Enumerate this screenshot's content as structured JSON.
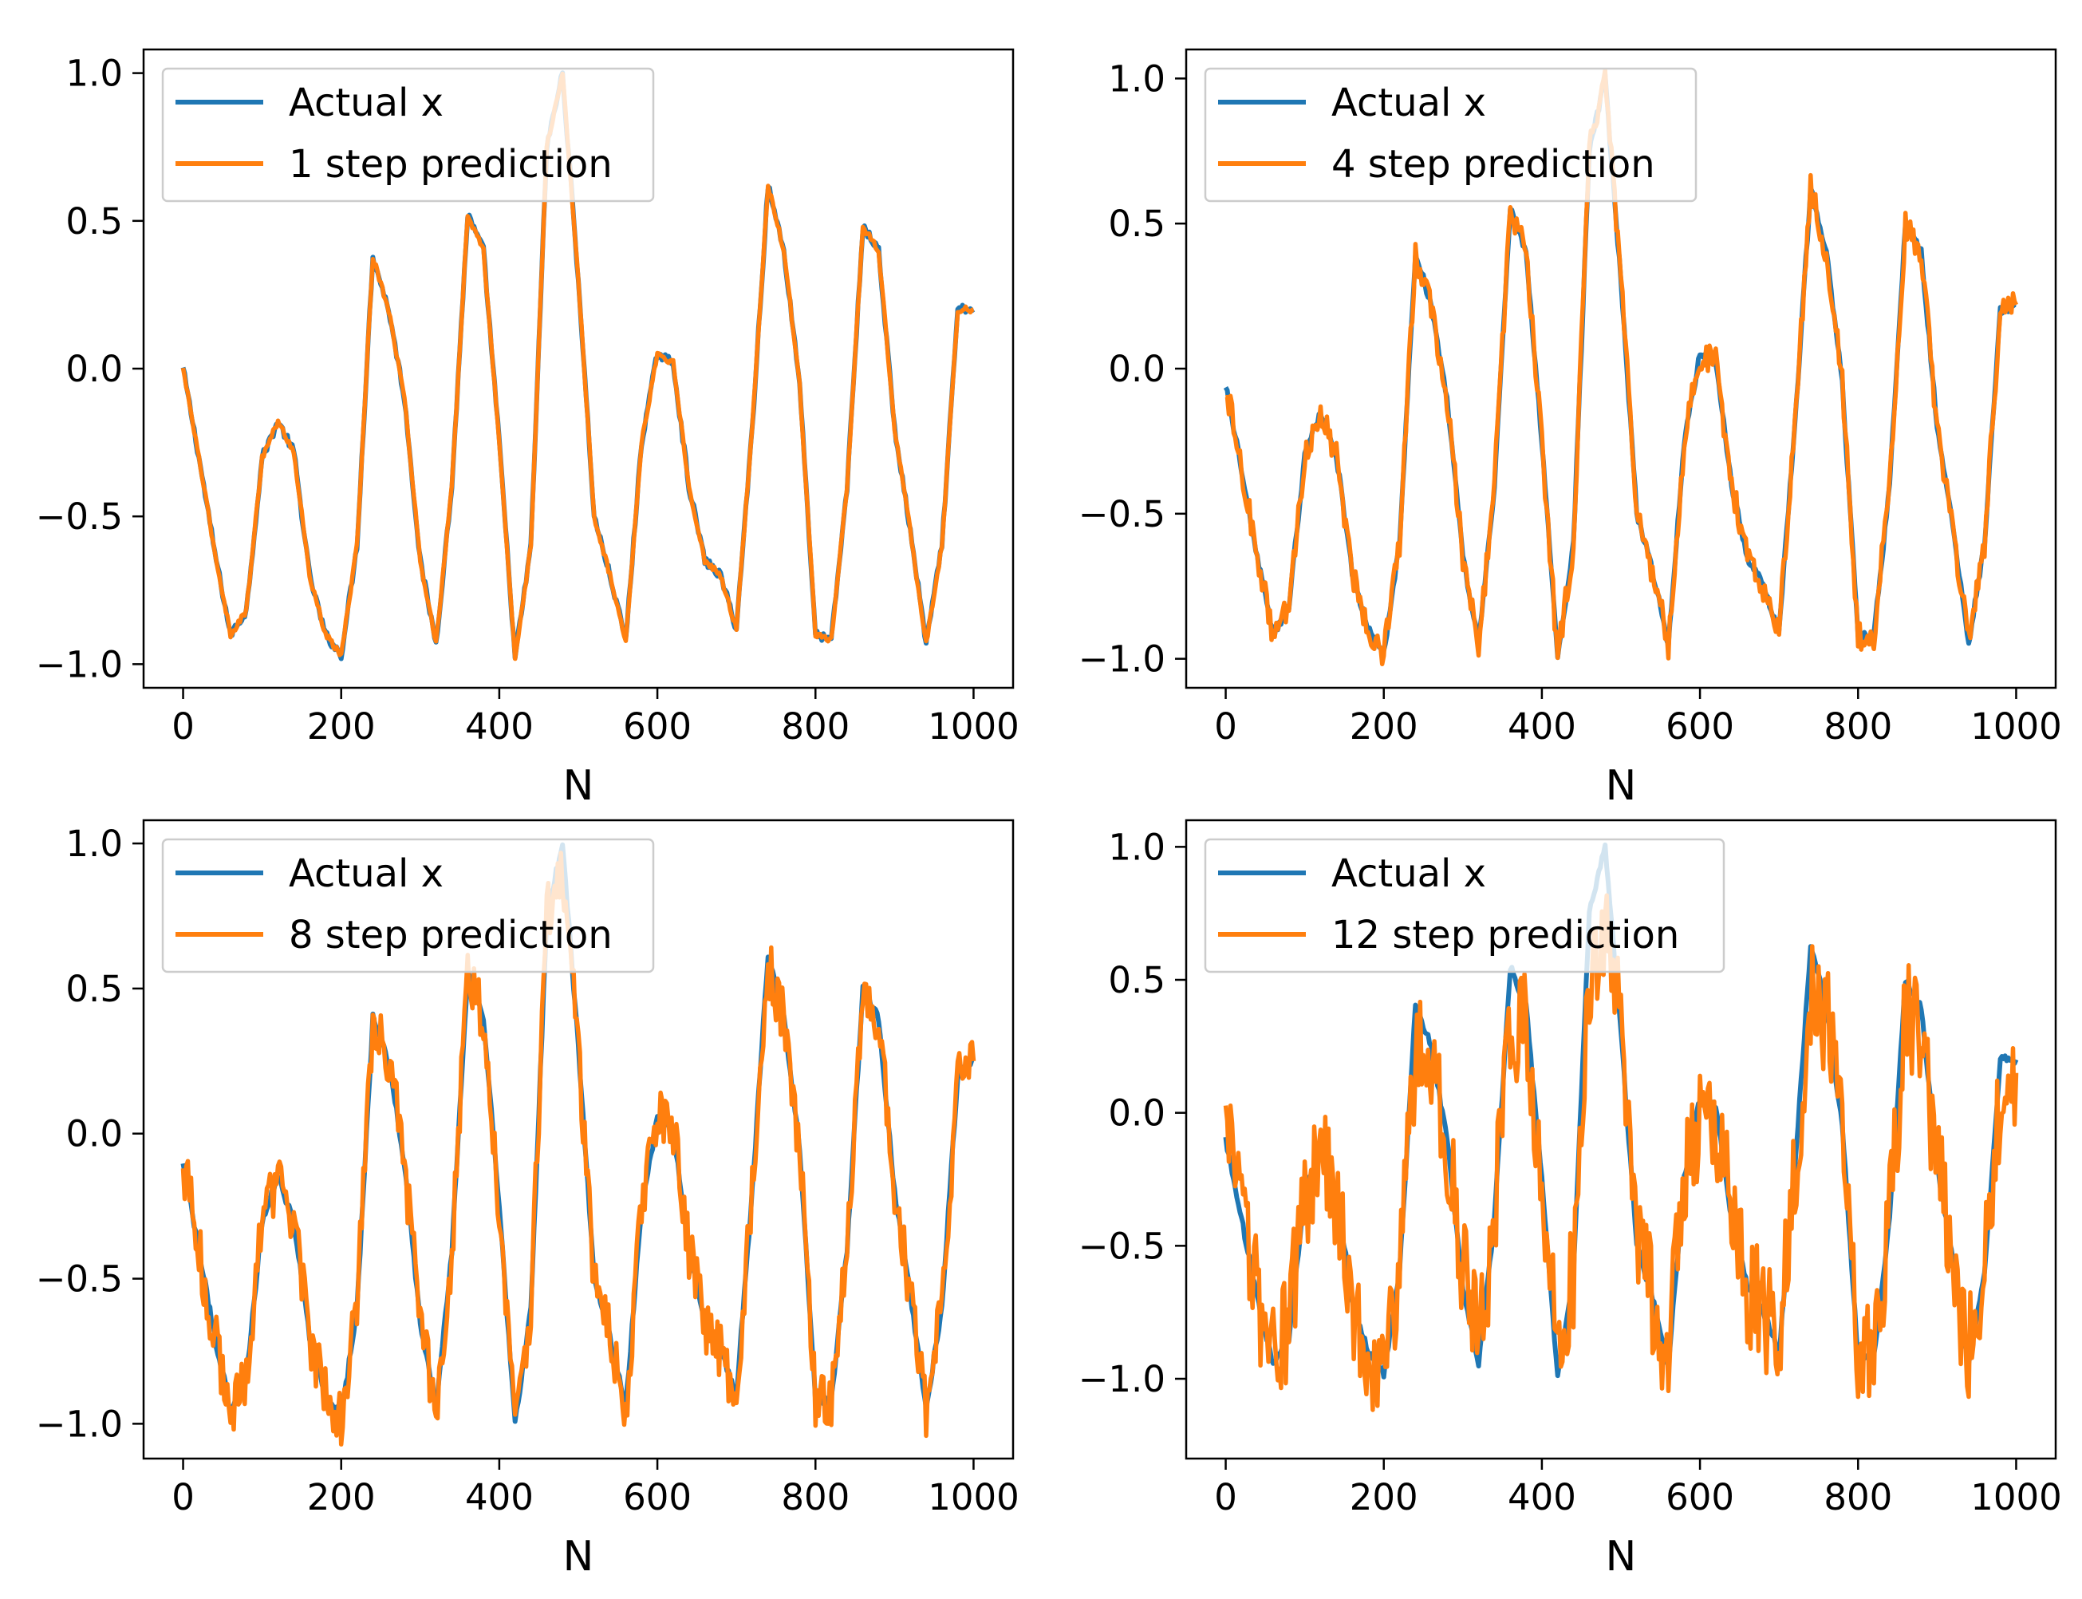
{
  "colors": {
    "actual": "#1f77b4",
    "prediction": "#ff7f0e",
    "axes": "#000000",
    "legend_border": "#cccccc"
  },
  "chart_data": [
    {
      "type": "line",
      "position": "top-left",
      "xlabel": "N",
      "ylabel": "",
      "xlim": [
        -50,
        1050
      ],
      "ylim": [
        -1.08,
        1.08
      ],
      "xticks": [
        0,
        200,
        400,
        600,
        800,
        1000
      ],
      "yticks": [
        -1.0,
        -0.5,
        0.0,
        0.5,
        1.0
      ],
      "xtick_labels": [
        "0",
        "200",
        "400",
        "600",
        "800",
        "1000"
      ],
      "ytick_labels": [
        "−1.0",
        "−0.5",
        "0.0",
        "0.5",
        "1.0"
      ],
      "legend_position": "top-left",
      "x": [
        0,
        20,
        40,
        60,
        80,
        100,
        120,
        140,
        160,
        180,
        200,
        220,
        240,
        260,
        280,
        300,
        320,
        340,
        360,
        380,
        400,
        420,
        440,
        460,
        480,
        500,
        520,
        540,
        560,
        580,
        600,
        620,
        640,
        660,
        680,
        700,
        720,
        740,
        760,
        780,
        800,
        820,
        840,
        860,
        880,
        900,
        920,
        940,
        960,
        980,
        1000
      ],
      "series": [
        {
          "name": "Actual x",
          "values": [
            0.0,
            -0.3,
            -0.62,
            -0.9,
            -0.82,
            -0.3,
            -0.18,
            -0.28,
            -0.7,
            -0.9,
            -0.97,
            -0.6,
            0.38,
            0.2,
            -0.1,
            -0.65,
            -0.93,
            -0.4,
            0.52,
            0.4,
            -0.25,
            -0.98,
            -0.6,
            0.75,
            1.0,
            0.3,
            -0.5,
            -0.7,
            -0.92,
            -0.25,
            0.05,
            0.02,
            -0.4,
            -0.65,
            -0.7,
            -0.88,
            -0.2,
            0.62,
            0.4,
            -0.05,
            -0.9,
            -0.92,
            -0.4,
            0.48,
            0.4,
            -0.2,
            -0.55,
            -0.93,
            -0.6,
            0.2,
            0.2
          ]
        },
        {
          "name": "1 step prediction",
          "noise": 0.01,
          "values": [
            0.0,
            -0.3,
            -0.62,
            -0.9,
            -0.82,
            -0.3,
            -0.18,
            -0.28,
            -0.7,
            -0.9,
            -0.97,
            -0.6,
            0.38,
            0.2,
            -0.1,
            -0.65,
            -0.93,
            -0.4,
            0.52,
            0.4,
            -0.25,
            -0.98,
            -0.6,
            0.75,
            1.0,
            0.3,
            -0.5,
            -0.7,
            -0.92,
            -0.25,
            0.05,
            0.02,
            -0.4,
            -0.65,
            -0.7,
            -0.88,
            -0.2,
            0.62,
            0.4,
            -0.05,
            -0.9,
            -0.92,
            -0.4,
            0.48,
            0.4,
            -0.2,
            -0.55,
            -0.93,
            -0.6,
            0.2,
            0.2
          ]
        }
      ]
    },
    {
      "type": "line",
      "position": "top-right",
      "xlabel": "N",
      "ylabel": "",
      "xlim": [
        -50,
        1050
      ],
      "ylim": [
        -1.1,
        1.1
      ],
      "xticks": [
        0,
        200,
        400,
        600,
        800,
        1000
      ],
      "yticks": [
        -1.0,
        -0.5,
        0.0,
        0.5,
        1.0
      ],
      "xtick_labels": [
        "0",
        "200",
        "400",
        "600",
        "800",
        "1000"
      ],
      "ytick_labels": [
        "−1.0",
        "−0.5",
        "0.0",
        "0.5",
        "1.0"
      ],
      "legend_position": "top-left",
      "x": [
        0,
        20,
        40,
        60,
        80,
        100,
        120,
        140,
        160,
        180,
        200,
        220,
        240,
        260,
        280,
        300,
        320,
        340,
        360,
        380,
        400,
        420,
        440,
        460,
        480,
        500,
        520,
        540,
        560,
        580,
        600,
        620,
        640,
        660,
        680,
        700,
        720,
        740,
        760,
        780,
        800,
        820,
        840,
        860,
        880,
        900,
        920,
        940,
        960,
        980,
        1000
      ],
      "series": [
        {
          "name": "Actual x",
          "values": [
            -0.05,
            -0.35,
            -0.65,
            -0.92,
            -0.82,
            -0.3,
            -0.15,
            -0.3,
            -0.7,
            -0.9,
            -0.98,
            -0.6,
            0.4,
            0.22,
            -0.1,
            -0.65,
            -0.95,
            -0.4,
            0.55,
            0.4,
            -0.25,
            -1.0,
            -0.6,
            0.75,
            1.0,
            0.3,
            -0.5,
            -0.7,
            -0.95,
            -0.25,
            0.05,
            0.02,
            -0.4,
            -0.65,
            -0.75,
            -0.9,
            -0.2,
            0.62,
            0.4,
            -0.05,
            -0.92,
            -0.92,
            -0.4,
            0.5,
            0.4,
            -0.2,
            -0.55,
            -0.95,
            -0.6,
            0.2,
            0.22
          ]
        },
        {
          "name": "4 step prediction",
          "noise": 0.05,
          "values": [
            -0.05,
            -0.35,
            -0.65,
            -0.92,
            -0.82,
            -0.3,
            -0.15,
            -0.3,
            -0.7,
            -0.9,
            -0.98,
            -0.6,
            0.4,
            0.22,
            -0.1,
            -0.65,
            -0.95,
            -0.4,
            0.55,
            0.4,
            -0.25,
            -1.0,
            -0.6,
            0.75,
            1.0,
            0.3,
            -0.5,
            -0.7,
            -0.95,
            -0.25,
            0.05,
            0.02,
            -0.4,
            -0.65,
            -0.75,
            -0.9,
            -0.2,
            0.62,
            0.4,
            -0.05,
            -0.92,
            -0.92,
            -0.4,
            0.5,
            0.4,
            -0.2,
            -0.55,
            -0.95,
            -0.6,
            0.2,
            0.22
          ]
        }
      ]
    },
    {
      "type": "line",
      "position": "bottom-left",
      "xlabel": "N",
      "ylabel": "",
      "xlim": [
        -50,
        1050
      ],
      "ylim": [
        -1.12,
        1.08
      ],
      "xticks": [
        0,
        200,
        400,
        600,
        800,
        1000
      ],
      "yticks": [
        -1.0,
        -0.5,
        0.0,
        0.5,
        1.0
      ],
      "xtick_labels": [
        "0",
        "200",
        "400",
        "600",
        "800",
        "1000"
      ],
      "ytick_labels": [
        "−1.0",
        "−0.5",
        "0.0",
        "0.5",
        "1.0"
      ],
      "legend_position": "top-left",
      "x": [
        0,
        20,
        40,
        60,
        80,
        100,
        120,
        140,
        160,
        180,
        200,
        220,
        240,
        260,
        280,
        300,
        320,
        340,
        360,
        380,
        400,
        420,
        440,
        460,
        480,
        500,
        520,
        540,
        560,
        580,
        600,
        620,
        640,
        660,
        680,
        700,
        720,
        740,
        760,
        780,
        800,
        820,
        840,
        860,
        880,
        900,
        920,
        940,
        960,
        980,
        1000
      ],
      "series": [
        {
          "name": "Actual x",
          "values": [
            -0.1,
            -0.4,
            -0.7,
            -0.95,
            -0.85,
            -0.3,
            -0.15,
            -0.3,
            -0.7,
            -0.9,
            -0.98,
            -0.6,
            0.4,
            0.25,
            -0.1,
            -0.65,
            -0.95,
            -0.4,
            0.55,
            0.4,
            -0.25,
            -1.0,
            -0.6,
            0.75,
            1.0,
            0.3,
            -0.5,
            -0.7,
            -0.95,
            -0.25,
            0.05,
            0.02,
            -0.4,
            -0.65,
            -0.75,
            -0.9,
            -0.2,
            0.62,
            0.4,
            -0.05,
            -0.92,
            -0.92,
            -0.4,
            0.5,
            0.4,
            -0.2,
            -0.55,
            -0.95,
            -0.6,
            0.2,
            0.25
          ]
        },
        {
          "name": "8 step prediction",
          "noise": 0.1,
          "values": [
            -0.1,
            -0.4,
            -0.7,
            -0.95,
            -0.85,
            -0.3,
            -0.15,
            -0.3,
            -0.7,
            -0.9,
            -0.98,
            -0.6,
            0.4,
            0.25,
            -0.1,
            -0.65,
            -0.95,
            -0.4,
            0.55,
            0.4,
            -0.25,
            -1.0,
            -0.6,
            0.75,
            0.9,
            0.3,
            -0.5,
            -0.7,
            -0.95,
            -0.25,
            0.05,
            0.02,
            -0.4,
            -0.65,
            -0.75,
            -0.9,
            -0.2,
            0.58,
            0.4,
            -0.05,
            -0.92,
            -0.92,
            -0.4,
            0.5,
            0.4,
            -0.2,
            -0.55,
            -0.95,
            -0.6,
            0.2,
            0.25
          ]
        }
      ]
    },
    {
      "type": "line",
      "position": "bottom-right",
      "xlabel": "N",
      "ylabel": "",
      "xlim": [
        -50,
        1050
      ],
      "ylim": [
        -1.3,
        1.1
      ],
      "xticks": [
        0,
        200,
        400,
        600,
        800,
        1000
      ],
      "yticks": [
        -1.0,
        -0.5,
        0.0,
        0.5,
        1.0
      ],
      "xtick_labels": [
        "0",
        "200",
        "400",
        "600",
        "800",
        "1000"
      ],
      "ytick_labels": [
        "−1.0",
        "−0.5",
        "0.0",
        "0.5",
        "1.0"
      ],
      "legend_position": "top-left",
      "x": [
        0,
        20,
        40,
        60,
        80,
        100,
        120,
        140,
        160,
        180,
        200,
        220,
        240,
        260,
        280,
        300,
        320,
        340,
        360,
        380,
        400,
        420,
        440,
        460,
        480,
        500,
        520,
        540,
        560,
        580,
        600,
        620,
        640,
        660,
        680,
        700,
        720,
        740,
        760,
        780,
        800,
        820,
        840,
        860,
        880,
        900,
        920,
        940,
        960,
        980,
        1000
      ],
      "series": [
        {
          "name": "Actual x",
          "values": [
            -0.1,
            -0.4,
            -0.7,
            -0.95,
            -0.85,
            -0.3,
            -0.15,
            -0.3,
            -0.7,
            -0.9,
            -0.98,
            -0.6,
            0.4,
            0.25,
            -0.1,
            -0.65,
            -0.95,
            -0.4,
            0.55,
            0.4,
            -0.25,
            -1.0,
            -0.6,
            0.75,
            1.0,
            0.3,
            -0.5,
            -0.7,
            -0.95,
            -0.25,
            0.05,
            0.02,
            -0.4,
            -0.65,
            -0.75,
            -0.9,
            -0.2,
            0.62,
            0.4,
            -0.05,
            -0.92,
            -0.92,
            -0.4,
            0.5,
            0.4,
            -0.2,
            -0.55,
            -0.95,
            -0.6,
            0.2,
            0.2
          ]
        },
        {
          "name": "12 step prediction",
          "noise": 0.22,
          "values": [
            -0.1,
            -0.4,
            -0.7,
            -0.9,
            -0.8,
            -0.3,
            -0.15,
            -0.3,
            -0.7,
            -0.9,
            -0.95,
            -0.6,
            0.25,
            0.15,
            -0.1,
            -0.6,
            -0.9,
            -0.4,
            0.35,
            0.3,
            -0.25,
            -0.95,
            -0.6,
            0.55,
            0.7,
            0.3,
            -0.5,
            -0.7,
            -0.9,
            -0.25,
            0.0,
            0.0,
            -0.4,
            -0.65,
            -0.75,
            -0.85,
            -0.2,
            0.45,
            0.35,
            -0.05,
            -0.85,
            -0.85,
            -0.4,
            0.35,
            0.3,
            -0.2,
            -0.55,
            -0.9,
            -0.6,
            0.1,
            0.15
          ]
        }
      ]
    }
  ]
}
